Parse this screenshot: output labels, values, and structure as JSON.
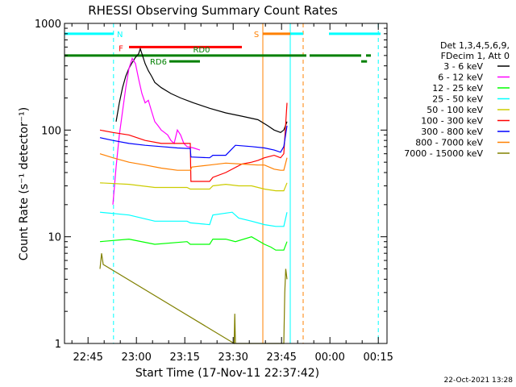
{
  "chart_data": {
    "type": "line",
    "title": "RHESSI Observing Summary Count Rates",
    "xlabel": "Start Time (17-Nov-11 22:37:42)",
    "ylabel": "Count Rate (s⁻¹ detector⁻¹)",
    "y_scale": "log",
    "ylim": [
      1,
      1000
    ],
    "xlim": [
      0,
      100
    ],
    "x_unit": "minutes after 22:37:42",
    "x_tick_labels": [
      "22:45",
      "23:00",
      "23:15",
      "23:30",
      "23:45",
      "00:00",
      "00:15"
    ],
    "x_tick_values": [
      7.3,
      22.3,
      37.3,
      52.3,
      67.3,
      82.3,
      97.3
    ],
    "y_tick_labels": [
      "1",
      "10",
      "100",
      "1000"
    ],
    "y_tick_values": [
      1,
      10,
      100,
      1000
    ],
    "legend": {
      "placement": "right",
      "header_lines": [
        "Det 1,3,4,5,6,9,",
        "FDecim 1, Att 0"
      ]
    },
    "series": [
      {
        "name": "3 - 6 keV",
        "color": "#000000",
        "x": [
          0,
          15,
          16,
          17,
          18,
          19,
          20,
          21,
          22,
          23,
          23.5,
          24,
          25,
          26,
          27,
          28,
          30,
          33,
          36,
          40,
          45,
          50,
          55,
          60,
          63,
          65,
          67,
          68,
          69
        ],
        "y": [
          null,
          null,
          120,
          180,
          250,
          320,
          380,
          430,
          480,
          520,
          580,
          520,
          420,
          360,
          320,
          280,
          250,
          220,
          200,
          180,
          160,
          145,
          135,
          125,
          110,
          100,
          95,
          100,
          120
        ]
      },
      {
        "name": "6 - 12 keV",
        "color": "#ff00ff",
        "x": [
          15,
          16,
          17,
          18,
          19,
          20,
          21,
          22,
          23,
          24,
          25,
          26,
          27,
          28,
          29,
          30,
          31,
          32,
          33,
          34,
          35,
          36,
          37,
          38,
          40,
          42
        ],
        "y": [
          20,
          45,
          90,
          150,
          250,
          380,
          470,
          420,
          300,
          220,
          180,
          190,
          150,
          120,
          110,
          100,
          95,
          90,
          80,
          75,
          100,
          90,
          75,
          70,
          68,
          65
        ]
      },
      {
        "name": "12 - 25 keV",
        "color": "#00ff00",
        "x": [
          11,
          20,
          28,
          38,
          39,
          45,
          46,
          50,
          53,
          58,
          62,
          64,
          65.5,
          68,
          69
        ],
        "y": [
          9,
          9.5,
          8.5,
          9,
          8.5,
          8.5,
          9.5,
          9.5,
          9,
          10,
          8.5,
          8,
          7.5,
          7.5,
          9
        ]
      },
      {
        "name": "25 - 50 keV",
        "color": "#00ffff",
        "x": [
          11,
          20,
          28,
          38,
          39,
          45,
          46,
          52,
          54,
          58,
          62,
          65.5,
          68,
          69
        ],
        "y": [
          17,
          16,
          14,
          14,
          13.5,
          13,
          16,
          17,
          15,
          14,
          13,
          12.5,
          12.5,
          17
        ]
      },
      {
        "name": "50 - 100 keV",
        "color": "#cccc00",
        "x": [
          11,
          20,
          28,
          38,
          39,
          45,
          46,
          50,
          54,
          58,
          62,
          65.5,
          68,
          69
        ],
        "y": [
          32,
          31,
          29,
          29,
          28,
          28,
          30,
          31,
          30,
          30,
          28,
          27,
          27,
          32
        ]
      },
      {
        "name": "100 - 300 keV",
        "color": "#ff0000",
        "x": [
          11,
          15,
          20,
          25,
          30,
          35,
          39,
          39.2,
          45,
          46,
          50,
          55,
          58,
          60,
          62,
          65,
          67,
          68,
          69
        ],
        "y": [
          100,
          95,
          90,
          80,
          75,
          75,
          75,
          33,
          33,
          36,
          40,
          48,
          50,
          52,
          55,
          58,
          55,
          60,
          180
        ]
      },
      {
        "name": "300 - 800 keV",
        "color": "#0000ff",
        "x": [
          11,
          15,
          20,
          25,
          30,
          35,
          39,
          39.2,
          45,
          46,
          50,
          53,
          58,
          62,
          65,
          67,
          68,
          69
        ],
        "y": [
          85,
          80,
          75,
          72,
          70,
          68,
          67,
          56,
          55,
          58,
          58,
          72,
          70,
          68,
          65,
          62,
          70,
          110
        ]
      },
      {
        "name": "800 - 7000 keV",
        "color": "#ff8000",
        "x": [
          11,
          15,
          20,
          25,
          30,
          35,
          39,
          39.5,
          45,
          50,
          55,
          60,
          62,
          65,
          67,
          68,
          69
        ],
        "y": [
          60,
          55,
          50,
          47,
          44,
          42,
          42,
          45,
          47,
          49,
          48,
          47,
          47,
          43,
          42,
          42,
          55
        ]
      },
      {
        "name": "7000 - 15000 keV",
        "color": "#808000",
        "x": [
          11,
          11.5,
          12,
          52.6,
          52.8,
          53,
          68,
          68.3,
          68.6,
          69
        ],
        "y": [
          5,
          7,
          5.5,
          1,
          1.9,
          1,
          1,
          3,
          5,
          4
        ]
      }
    ],
    "state_bars": [
      {
        "label": "N",
        "color": "#00ffff",
        "value": 800,
        "segments": [
          [
            0,
            15.2
          ],
          [
            70,
            74
          ],
          [
            82,
            98
          ]
        ]
      },
      {
        "label": "S",
        "color": "#ff8000",
        "value": 800,
        "segments": [
          [
            61.5,
            70
          ]
        ]
      },
      {
        "label": "F",
        "color": "#ff0000",
        "value": 600,
        "segments": [
          [
            20,
            55
          ]
        ]
      },
      {
        "label": "RD0",
        "color": "#008000",
        "value": 500,
        "segments": [
          [
            0,
            75
          ],
          [
            76,
            92
          ],
          [
            93.5,
            95
          ]
        ]
      },
      {
        "label": "RD6",
        "color": "#008000",
        "value": 440,
        "segments": [
          [
            32.5,
            42
          ],
          [
            92,
            93.8
          ]
        ]
      }
    ],
    "vlines": [
      {
        "x": 0,
        "color": "#00ffff",
        "style": "solid"
      },
      {
        "x": 15.2,
        "color": "#00ffff",
        "style": "dashed"
      },
      {
        "x": 61.5,
        "color": "#ff8000",
        "style": "solid"
      },
      {
        "x": 70,
        "color": "#00ffff",
        "style": "solid"
      },
      {
        "x": 74,
        "color": "#ff8000",
        "style": "dashed"
      },
      {
        "x": 97.3,
        "color": "#00ffff",
        "style": "dashed"
      }
    ],
    "grid": false
  },
  "footer": {
    "timestamp": "22-Oct-2021 13:28"
  }
}
